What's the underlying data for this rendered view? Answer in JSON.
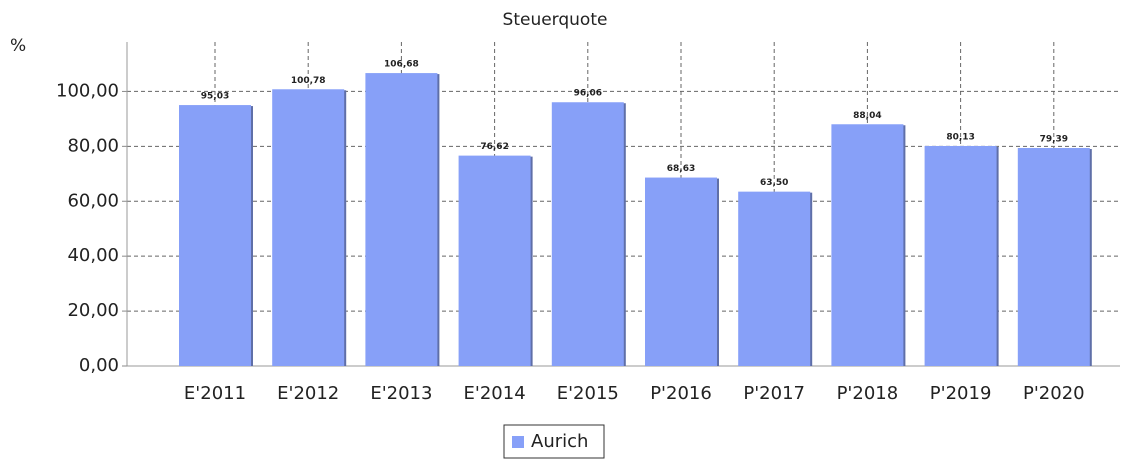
{
  "chart_data": {
    "type": "bar",
    "title": "Steuerquote",
    "y_label": "%",
    "categories": [
      "E'2011",
      "E'2012",
      "E'2013",
      "E'2014",
      "E'2015",
      "P'2016",
      "P'2017",
      "P'2018",
      "P'2019",
      "P'2020"
    ],
    "series": [
      {
        "name": "Aurich",
        "color": "#87a0f8",
        "values": [
          95.03,
          100.78,
          106.68,
          76.62,
          96.06,
          68.63,
          63.5,
          88.04,
          80.13,
          79.39
        ],
        "value_labels": [
          "95,03",
          "100,78",
          "106,68",
          "76,62",
          "96,06",
          "68,63",
          "63,50",
          "88,04",
          "80,13",
          "79,39"
        ]
      }
    ],
    "ylim": [
      0,
      118
    ],
    "yticks": [
      {
        "value": 0,
        "label": "0,00"
      },
      {
        "value": 20,
        "label": "20,00"
      },
      {
        "value": 40,
        "label": "40,00"
      },
      {
        "value": 60,
        "label": "60,00"
      },
      {
        "value": 80,
        "label": "80,00"
      },
      {
        "value": 100,
        "label": "100,00"
      }
    ],
    "grid": true,
    "legend": "bottom"
  }
}
